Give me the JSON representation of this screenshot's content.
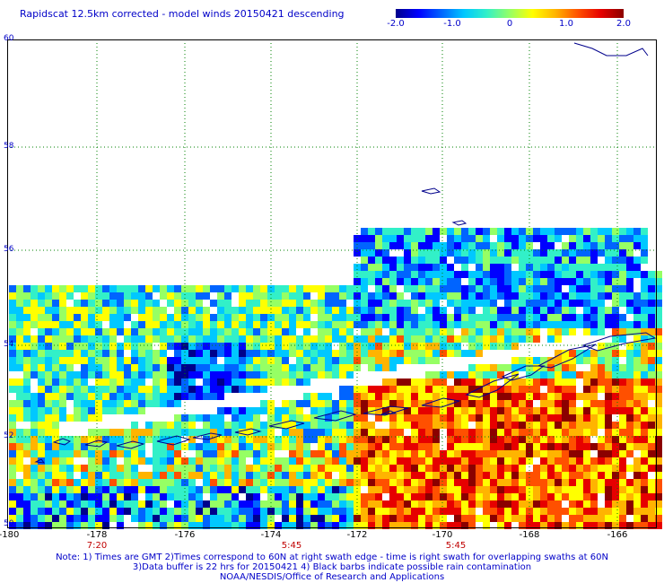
{
  "title": "Rapidscat 12.5km corrected - model winds 20150421 descending",
  "colorbar": {
    "ticks": [
      "-2.0",
      "-1.0",
      "0",
      "1.0",
      "2.0"
    ],
    "range": [
      -2.0,
      2.0
    ],
    "colors": [
      "#00008b",
      "#0000ff",
      "#0064ff",
      "#00c8ff",
      "#32f0c8",
      "#96ff64",
      "#ffff00",
      "#ffb400",
      "#ff5000",
      "#e60000",
      "#8b0000"
    ]
  },
  "axes": {
    "lat_labels": [
      "60",
      "58",
      "56",
      "54",
      "52",
      "50"
    ],
    "lon_labels": [
      "-180",
      "-178",
      "-176",
      "-174",
      "-172",
      "-170",
      "-168",
      "-166"
    ],
    "lat_range": [
      50,
      60
    ],
    "lon_range": [
      -180,
      -165.4
    ]
  },
  "swath_times": [
    "7:20",
    "5:45",
    "5:45"
  ],
  "notes": [
    "Note: 1) Times are GMT 2)Times correspond to 60N at right swath edge - time is right swath for overlapping swaths at 60N",
    "3)Data buffer is 22 hrs for 20150421 4) Black barbs indicate possible rain contamination",
    "NOAA/NESDIS/Office of Research and Applications"
  ]
}
